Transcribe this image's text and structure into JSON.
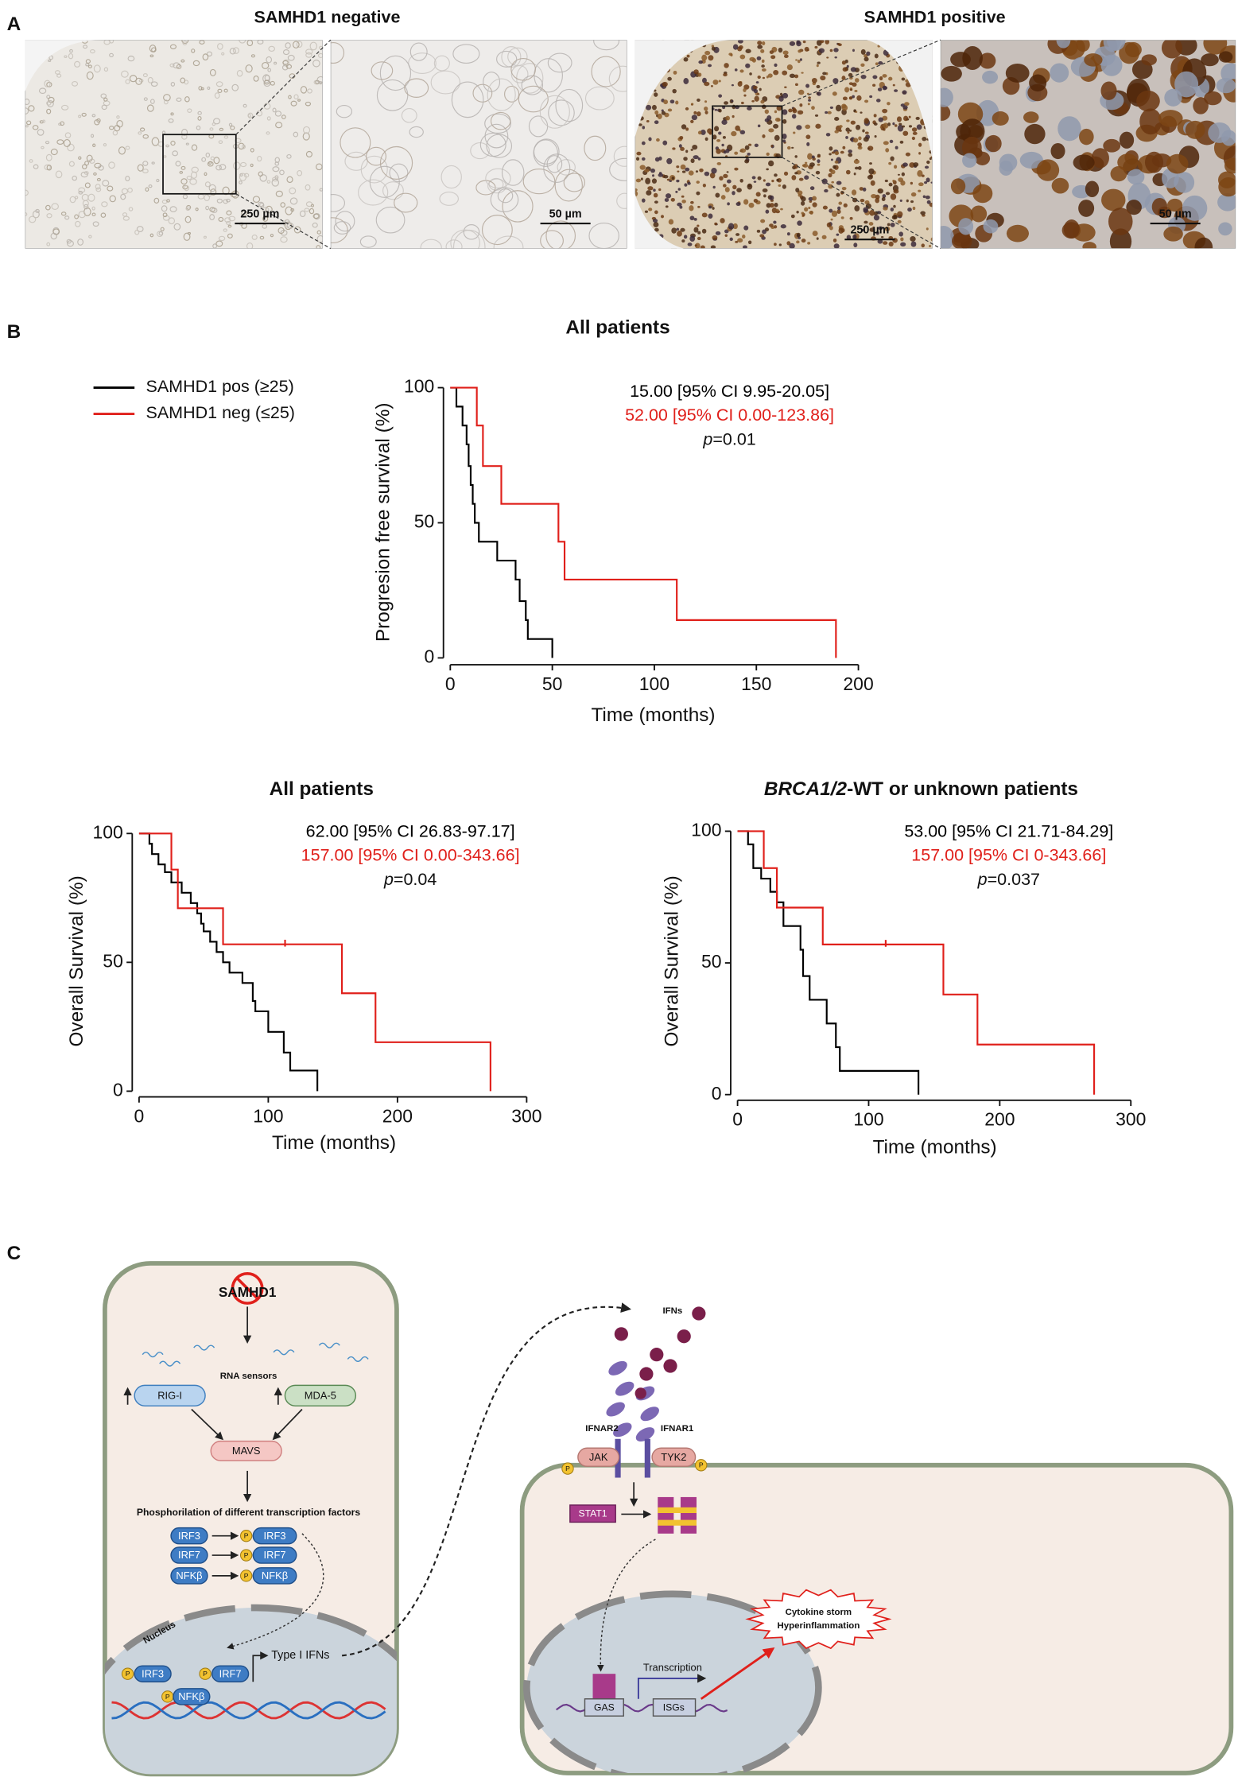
{
  "panel_labels": [
    "A",
    "B",
    "C"
  ],
  "panel_a": {
    "negative_title": "SAMHD1 negative",
    "positive_title": "SAMHD1 positive",
    "scale_bars": [
      "250 µm",
      "50 µm",
      "250 µm",
      "50 µm"
    ]
  },
  "chart_data": [
    {
      "type": "step",
      "title": "All patients",
      "y_label": "Progresion free survival (%)",
      "x_label": "Time  (months)",
      "xlim": [
        0,
        200
      ],
      "xticks": [
        0,
        50,
        100,
        150,
        200
      ],
      "ylim": [
        0,
        100
      ],
      "yticks": [
        0,
        50,
        100
      ],
      "annotations": [
        {
          "text": "15.00 [95% CI 9.95-20.05]",
          "color": "#000000"
        },
        {
          "text": "52.00 [95% CI 0.00-123.86]",
          "color": "#e0201b"
        }
      ],
      "p_value": {
        "symbol": "p",
        "text": "=0.01"
      },
      "series": [
        {
          "name": "SAMHD1 pos (≥25)",
          "color": "#000000",
          "x": [
            0,
            3,
            6,
            8,
            9,
            10,
            11,
            12,
            14,
            23,
            32,
            34,
            37,
            38,
            50
          ],
          "values": [
            100,
            93,
            86,
            79,
            71,
            64,
            57,
            50,
            43,
            36,
            29,
            21,
            14,
            7,
            0
          ]
        },
        {
          "name": "SAMHD1 neg (≤25)",
          "color": "#e0201b",
          "x": [
            0,
            13,
            16,
            25,
            53,
            56,
            111,
            189,
            189
          ],
          "values": [
            100,
            86,
            71,
            57,
            43,
            29,
            14,
            14,
            0
          ]
        }
      ]
    },
    {
      "type": "step",
      "title": "All patients",
      "y_label": "Overall  Survival  (%)",
      "x_label": "Time  (months)",
      "xlim": [
        0,
        300
      ],
      "xticks": [
        0,
        100,
        200,
        300
      ],
      "ylim": [
        0,
        100
      ],
      "yticks": [
        0,
        50,
        100
      ],
      "annotations": [
        {
          "text": "62.00 [95% CI 26.83-97.17]",
          "color": "#000000"
        },
        {
          "text": "157.00 [95% CI 0.00-343.66]",
          "color": "#e0201b"
        }
      ],
      "p_value": {
        "symbol": "p",
        "text": "=0.04"
      },
      "series": [
        {
          "color": "#000000",
          "x": [
            0,
            8,
            10,
            15,
            20,
            25,
            33,
            40,
            45,
            48,
            50,
            55,
            60,
            65,
            70,
            80,
            88,
            90,
            100,
            112,
            117,
            138
          ],
          "values": [
            100,
            96,
            92,
            88,
            85,
            81,
            77,
            73,
            69,
            65,
            62,
            58,
            54,
            50,
            46,
            42,
            35,
            31,
            23,
            15,
            8,
            0
          ]
        },
        {
          "color": "#e0201b",
          "x": [
            0,
            25,
            30,
            65,
            157,
            183,
            272
          ],
          "values": [
            100,
            86,
            71,
            57,
            38,
            19,
            0
          ],
          "censored": {
            "x": [
              113
            ],
            "values": [
              57
            ]
          }
        }
      ]
    },
    {
      "type": "step",
      "title_parts": [
        {
          "text": "BRCA1/2",
          "italic": true
        },
        {
          "text": "-WT or unknown patients",
          "italic": false
        }
      ],
      "y_label": "Overall  Survival  (%)",
      "x_label": "Time  (months)",
      "xlim": [
        0,
        300
      ],
      "xticks": [
        0,
        100,
        200,
        300
      ],
      "ylim": [
        0,
        100
      ],
      "yticks": [
        0,
        50,
        100
      ],
      "annotations": [
        {
          "text": "53.00 [95% CI 21.71-84.29]",
          "color": "#000000"
        },
        {
          "text": "157.00 [95% CI 0-343.66]",
          "color": "#e0201b"
        }
      ],
      "p_value": {
        "symbol": "p",
        "text": "=0.037"
      },
      "series": [
        {
          "color": "#000000",
          "x": [
            0,
            8,
            12,
            18,
            25,
            30,
            35,
            48,
            50,
            55,
            68,
            75,
            78,
            138
          ],
          "values": [
            100,
            95,
            86,
            82,
            77,
            73,
            64,
            55,
            45,
            36,
            27,
            18,
            9,
            0
          ]
        },
        {
          "color": "#e0201b",
          "x": [
            0,
            20,
            30,
            65,
            157,
            183,
            272
          ],
          "values": [
            100,
            86,
            71,
            57,
            38,
            19,
            0
          ],
          "censored": {
            "x": [
              113
            ],
            "values": [
              57
            ]
          }
        }
      ]
    }
  ],
  "panel_c": {
    "samhd1": "SAMHD1",
    "rna_sensors": "RNA sensors",
    "rig_i": "RIG-I",
    "mda_5": "MDA-5",
    "mavs": "MAVS",
    "phosphorylation": "Phosphorilation of different transcription factors",
    "factors": [
      "IRF3",
      "IRF7",
      "NFKβ"
    ],
    "phospho": "P",
    "nucleus": "Nucleus",
    "type_i_ifns": "Type I IFNs",
    "ifns": "IFNs",
    "ifnar2": "IFNAR2",
    "ifnar1": "IFNAR1",
    "jak": "JAK",
    "tyk2": "TYK2",
    "stat1": "STAT1",
    "transcription": "Transcription",
    "gas": "GAS",
    "isgs": "ISGs",
    "cytokine": [
      "Cytokine storm",
      "Hyperinflammation"
    ]
  }
}
